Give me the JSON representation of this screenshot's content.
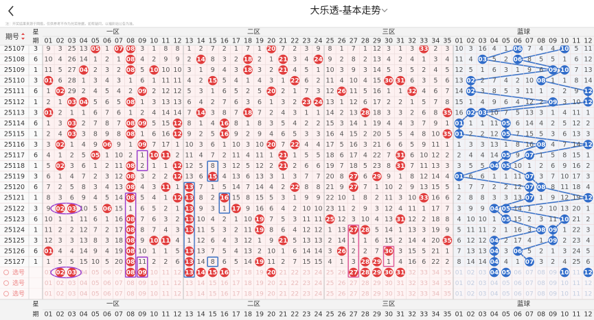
{
  "header": {
    "title": "大乐透-基本走势",
    "note": "注：开奖结果来源于网络，仅供参考不作为兑奖依据，如有疑问，以福彩站公告为准。"
  },
  "table": {
    "issue_label": "期号",
    "week_label": [
      "星",
      "期"
    ],
    "zones": [
      "一区",
      "二区",
      "三区",
      "蓝球"
    ],
    "front_numbers": [
      "01",
      "02",
      "03",
      "04",
      "05",
      "06",
      "07",
      "08",
      "09",
      "10",
      "11",
      "12",
      "13",
      "14",
      "15",
      "16",
      "17",
      "18",
      "19",
      "20",
      "21",
      "22",
      "23",
      "24",
      "25",
      "26",
      "27",
      "28",
      "29",
      "30",
      "31",
      "32",
      "33",
      "34",
      "35"
    ],
    "blue_numbers": [
      "01",
      "02",
      "03",
      "04",
      "05",
      "06",
      "07",
      "08",
      "09",
      "10",
      "11",
      "12"
    ],
    "rows": [
      {
        "issue": "25107",
        "week": 3,
        "front": [
          9,
          3,
          25,
          13,
          "05",
          1,
          "07",
          "08",
          3,
          1,
          8,
          8,
          1,
          2,
          7,
          2,
          1,
          7,
          1,
          "20",
          7,
          2,
          3,
          9,
          8,
          1,
          7,
          1,
          12,
          3,
          1,
          3,
          "33",
          2,
          3
        ],
        "blue": [
          10,
          3,
          16,
          4,
          1,
          "06",
          7,
          4,
          4,
          "10",
          5,
          11
        ]
      },
      {
        "issue": "25108",
        "week": 6,
        "front": [
          10,
          4,
          26,
          14,
          1,
          2,
          1,
          "08",
          4,
          2,
          9,
          9,
          2,
          "14",
          8,
          3,
          2,
          "18",
          2,
          1,
          "21",
          3,
          4,
          "24",
          9,
          2,
          8,
          2,
          13,
          4,
          2,
          4,
          1,
          3,
          4
        ],
        "blue": [
          11,
          4,
          "03",
          5,
          2,
          "06",
          8,
          5,
          5,
          1,
          6,
          12
        ]
      },
      {
        "issue": "25109",
        "week": 1,
        "front": [
          11,
          5,
          27,
          "04",
          2,
          3,
          2,
          "08",
          5,
          "10",
          10,
          10,
          3,
          1,
          9,
          4,
          3,
          "18",
          3,
          2,
          "21",
          4,
          5,
          1,
          10,
          3,
          9,
          3,
          14,
          5,
          3,
          5,
          2,
          4,
          5
        ],
        "blue": [
          12,
          5,
          1,
          6,
          3,
          1,
          9,
          6,
          "09",
          "10",
          7,
          13
        ]
      },
      {
        "issue": "25110",
        "week": 3,
        "front": [
          "01",
          6,
          28,
          1,
          3,
          4,
          3,
          1,
          6,
          1,
          11,
          11,
          4,
          2,
          "15",
          5,
          4,
          1,
          4,
          3,
          1,
          "22",
          6,
          2,
          11,
          4,
          10,
          4,
          15,
          "30",
          "31",
          6,
          3,
          5,
          6
        ],
        "blue": [
          13,
          "02",
          2,
          7,
          4,
          2,
          10,
          "08",
          1,
          1,
          8,
          14
        ]
      },
      {
        "issue": "25111",
        "week": 6,
        "front": [
          1,
          "02",
          29,
          2,
          4,
          5,
          4,
          2,
          "09",
          2,
          12,
          12,
          5,
          3,
          1,
          6,
          5,
          2,
          5,
          "20",
          2,
          1,
          7,
          3,
          12,
          "26",
          11,
          5,
          16,
          1,
          1,
          "32",
          4,
          6,
          7
        ],
        "blue": [
          14,
          "02",
          3,
          8,
          5,
          3,
          11,
          1,
          2,
          2,
          9,
          "12"
        ]
      },
      {
        "issue": "25112",
        "week": 1,
        "front": [
          2,
          1,
          "03",
          "04",
          5,
          6,
          5,
          "08",
          1,
          3,
          13,
          13,
          6,
          4,
          2,
          7,
          6,
          3,
          6,
          1,
          3,
          2,
          "23",
          "24",
          13,
          1,
          12,
          6,
          17,
          2,
          2,
          1,
          5,
          7,
          8
        ],
        "blue": [
          15,
          1,
          4,
          9,
          6,
          4,
          12,
          2,
          "09",
          3,
          10,
          "12"
        ]
      },
      {
        "issue": "25113",
        "week": 3,
        "front": [
          "01",
          2,
          1,
          1,
          6,
          7,
          6,
          1,
          2,
          4,
          14,
          14,
          7,
          "14",
          3,
          8,
          7,
          "18",
          7,
          2,
          4,
          3,
          1,
          1,
          14,
          2,
          13,
          "28",
          18,
          3,
          3,
          2,
          6,
          8,
          "35"
        ],
        "blue": [
          16,
          "02",
          "03",
          10,
          7,
          5,
          13,
          3,
          1,
          4,
          11,
          1
        ]
      },
      {
        "issue": "25114",
        "week": 6,
        "front": [
          1,
          3,
          "03",
          2,
          7,
          8,
          7,
          "08",
          "09",
          5,
          15,
          "12",
          8,
          1,
          4,
          "16",
          8,
          1,
          8,
          3,
          5,
          4,
          2,
          2,
          15,
          3,
          14,
          1,
          19,
          4,
          4,
          3,
          7,
          9,
          1
        ],
        "blue": [
          "01",
          1,
          1,
          11,
          "05",
          6,
          14,
          4,
          2,
          5,
          12,
          2
        ]
      },
      {
        "issue": "25115",
        "week": 1,
        "front": [
          2,
          4,
          "03",
          3,
          8,
          9,
          8,
          "08",
          1,
          6,
          16,
          "12",
          9,
          2,
          5,
          "16",
          9,
          2,
          9,
          4,
          6,
          5,
          3,
          3,
          16,
          4,
          15,
          2,
          20,
          5,
          5,
          4,
          8,
          10,
          "35"
        ],
        "blue": [
          "01",
          2,
          2,
          12,
          "05",
          7,
          15,
          5,
          3,
          6,
          13,
          3
        ]
      },
      {
        "issue": "25116",
        "week": 3,
        "front": [
          3,
          "02",
          1,
          4,
          9,
          "06",
          9,
          1,
          "09",
          7,
          17,
          1,
          10,
          3,
          6,
          1,
          10,
          3,
          10,
          "20",
          7,
          "22",
          4,
          4,
          17,
          5,
          16,
          3,
          21,
          6,
          6,
          5,
          9,
          11,
          1
        ],
        "blue": [
          1,
          3,
          3,
          13,
          1,
          8,
          16,
          "08",
          4,
          7,
          14,
          "12"
        ]
      },
      {
        "issue": "25117",
        "week": 6,
        "front": [
          4,
          1,
          2,
          5,
          "05",
          1,
          10,
          2,
          1,
          "10",
          "11",
          2,
          11,
          4,
          7,
          2,
          11,
          4,
          11,
          1,
          "21",
          1,
          5,
          5,
          18,
          6,
          17,
          4,
          22,
          7,
          "31",
          6,
          10,
          12,
          2
        ],
        "blue": [
          2,
          4,
          4,
          14,
          "05",
          9,
          "07",
          1,
          5,
          8,
          15,
          1
        ]
      },
      {
        "issue": "25118",
        "week": 1,
        "front": [
          5,
          "02",
          3,
          6,
          1,
          2,
          11,
          "08",
          2,
          1,
          1,
          "12",
          12,
          5,
          8,
          3,
          12,
          5,
          12,
          2,
          "21",
          2,
          6,
          6,
          19,
          7,
          18,
          5,
          23,
          8,
          "31",
          7,
          11,
          13,
          3
        ],
        "blue": [
          3,
          5,
          5,
          "04",
          "05",
          10,
          1,
          2,
          6,
          9,
          16,
          2
        ]
      },
      {
        "issue": "25119",
        "week": 3,
        "front": [
          6,
          1,
          4,
          7,
          2,
          3,
          12,
          "08",
          3,
          2,
          2,
          "12",
          13,
          6,
          "15",
          4,
          13,
          6,
          13,
          3,
          1,
          3,
          7,
          7,
          20,
          8,
          "27",
          6,
          "29",
          9,
          1,
          8,
          12,
          14,
          4
        ],
        "blue": [
          "01",
          6,
          6,
          1,
          1,
          11,
          "07",
          3,
          7,
          10,
          17,
          3
        ]
      },
      {
        "issue": "25120",
        "week": 6,
        "front": [
          7,
          2,
          5,
          8,
          3,
          4,
          13,
          "08",
          4,
          3,
          "11",
          1,
          "13",
          7,
          1,
          5,
          14,
          7,
          14,
          4,
          2,
          "22",
          8,
          8,
          21,
          9,
          "27",
          7,
          1,
          10,
          2,
          9,
          13,
          15,
          5
        ],
        "blue": [
          1,
          7,
          7,
          2,
          2,
          12,
          "07",
          "08",
          8,
          11,
          18,
          4
        ]
      },
      {
        "issue": "25121",
        "week": 1,
        "front": [
          8,
          3,
          6,
          9,
          4,
          5,
          14,
          "08",
          5,
          4,
          1,
          "12",
          "13",
          8,
          2,
          "16",
          15,
          8,
          15,
          5,
          3,
          1,
          9,
          9,
          22,
          10,
          1,
          8,
          2,
          11,
          3,
          10,
          "33",
          16,
          6
        ],
        "blue": [
          2,
          8,
          8,
          3,
          3,
          13,
          "07",
          1,
          9,
          12,
          19,
          "12"
        ]
      },
      {
        "issue": "25122",
        "week": 3,
        "front": [
          9,
          "02",
          "03",
          10,
          5,
          "06",
          15,
          1,
          6,
          5,
          2,
          1,
          "13",
          9,
          3,
          1,
          "17",
          9,
          16,
          6,
          4,
          2,
          10,
          10,
          23,
          11,
          2,
          9,
          3,
          12,
          4,
          11,
          1,
          17,
          7
        ],
        "blue": [
          3,
          9,
          9,
          "04",
          "05",
          14,
          1,
          2,
          10,
          13,
          20,
          1
        ]
      },
      {
        "issue": "25123",
        "week": 6,
        "front": [
          10,
          1,
          1,
          11,
          6,
          1,
          16,
          "08",
          7,
          6,
          3,
          2,
          "13",
          10,
          4,
          2,
          1,
          10,
          "19",
          7,
          5,
          3,
          11,
          11,
          "25",
          12,
          3,
          10,
          4,
          13,
          "31",
          12,
          2,
          18,
          8
        ],
        "blue": [
          4,
          10,
          10,
          1,
          "05",
          15,
          2,
          3,
          11,
          "10",
          21,
          2
        ]
      },
      {
        "issue": "25124",
        "week": 1,
        "front": [
          11,
          2,
          2,
          12,
          7,
          2,
          17,
          "08",
          8,
          7,
          4,
          3,
          "13",
          11,
          5,
          3,
          2,
          11,
          "19",
          8,
          6,
          4,
          12,
          12,
          1,
          13,
          "27",
          "28",
          5,
          14,
          1,
          13,
          3,
          19,
          9
        ],
        "blue": [
          5,
          11,
          11,
          2,
          1,
          16,
          3,
          "08",
          "09",
          1,
          22,
          3
        ]
      },
      {
        "issue": "25125",
        "week": 3,
        "front": [
          12,
          3,
          3,
          13,
          8,
          3,
          18,
          "08",
          9,
          "10",
          "11",
          4,
          1,
          12,
          6,
          4,
          3,
          12,
          1,
          9,
          "21",
          5,
          13,
          13,
          2,
          14,
          1,
          1,
          6,
          15,
          2,
          14,
          4,
          20,
          "35"
        ],
        "blue": [
          6,
          12,
          12,
          "04",
          2,
          17,
          4,
          1,
          "09",
          2,
          23,
          4
        ]
      },
      {
        "issue": "25126",
        "week": 6,
        "front": [
          "01",
          4,
          4,
          14,
          9,
          4,
          19,
          "08",
          10,
          1,
          1,
          5,
          "13",
          13,
          7,
          5,
          4,
          13,
          2,
          10,
          1,
          6,
          14,
          14,
          3,
          "26",
          2,
          2,
          7,
          "30",
          3,
          15,
          5,
          21,
          1
        ],
        "blue": [
          7,
          13,
          13,
          "04",
          3,
          "06",
          5,
          2,
          1,
          3,
          24,
          5
        ]
      },
      {
        "issue": "25127",
        "week": 1,
        "front": [
          1,
          5,
          5,
          15,
          10,
          5,
          20,
          "08",
          11,
          2,
          2,
          6,
          "13",
          14,
          8,
          6,
          5,
          14,
          "19",
          11,
          2,
          7,
          15,
          15,
          4,
          1,
          3,
          "28",
          "29",
          1,
          4,
          16,
          6,
          22,
          2
        ],
        "blue": [
          8,
          14,
          14,
          "04",
          4,
          1,
          "07",
          3,
          2,
          4,
          25,
          6
        ]
      }
    ],
    "pick_rows": [
      {
        "label": "选号",
        "front": [
          "02",
          "03",
          "08",
          "09",
          "13",
          "14",
          "15",
          "16",
          "20",
          "27",
          "28",
          "29",
          "30",
          "31"
        ],
        "blue": [
          "04",
          "05",
          "10",
          "12"
        ]
      },
      {
        "label": "选号",
        "front": [],
        "blue": []
      },
      {
        "label": "选号",
        "front": [],
        "blue": []
      }
    ]
  }
}
